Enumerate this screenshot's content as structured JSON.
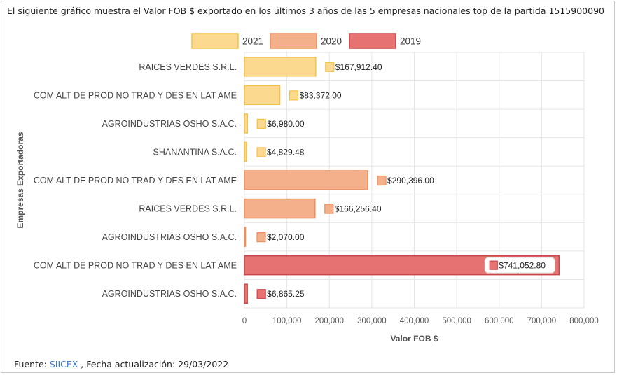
{
  "caption": "El siguiente gráfico muestra el Valor FOB $ exportado en los últimos 3 años de las 5 empresas nacionales top de la partida 1515900090",
  "footer": {
    "prefix": "Fuente: ",
    "link": "SIICEX",
    "suffix": " , Fecha actualización: 29/03/2022"
  },
  "colors": {
    "2021": {
      "fill": "#fbd98f",
      "stroke": "#f2c14a"
    },
    "2020": {
      "fill": "#f4b08a",
      "stroke": "#ec8f5e"
    },
    "2019": {
      "fill": "#e77272",
      "stroke": "#c9474b"
    }
  },
  "chart_data": {
    "type": "bar",
    "orientation": "horizontal",
    "xlabel": "Valor FOB $",
    "ylabel": "Empresas Exportadoras",
    "xlim": [
      0,
      800000
    ],
    "xticks": [
      "0",
      "100,000",
      "200,000",
      "300,000",
      "400,000",
      "500,000",
      "600,000",
      "700,000",
      "800,000"
    ],
    "grid": true,
    "legend_position": "top",
    "legend": [
      "2021",
      "2020",
      "2019"
    ],
    "rows": [
      {
        "category": "RAICES VERDES S.R.L.",
        "series": "2021",
        "value": 167912.4,
        "label": "$167,912.40"
      },
      {
        "category": "COM ALT DE PROD NO TRAD Y DES EN LAT AME",
        "series": "2021",
        "value": 83372.0,
        "label": "$83,372.00"
      },
      {
        "category": "AGROINDUSTRIAS OSHO S.A.C.",
        "series": "2021",
        "value": 6980.0,
        "label": "$6,980.00"
      },
      {
        "category": "SHANANTINA S.A.C.",
        "series": "2021",
        "value": 4829.48,
        "label": "$4,829.48"
      },
      {
        "category": "COM ALT DE PROD NO TRAD Y DES EN LAT AME",
        "series": "2020",
        "value": 290396.0,
        "label": "$290,396.00"
      },
      {
        "category": "RAICES VERDES S.R.L.",
        "series": "2020",
        "value": 166256.4,
        "label": "$166,256.40"
      },
      {
        "category": "AGROINDUSTRIAS OSHO S.A.C.",
        "series": "2020",
        "value": 2070.0,
        "label": "$2,070.00"
      },
      {
        "category": "COM ALT DE PROD NO TRAD Y DES EN LAT AME",
        "series": "2019",
        "value": 741052.8,
        "label": "$741,052.80"
      },
      {
        "category": "AGROINDUSTRIAS OSHO S.A.C.",
        "series": "2019",
        "value": 6865.25,
        "label": "$6,865.25"
      }
    ]
  }
}
